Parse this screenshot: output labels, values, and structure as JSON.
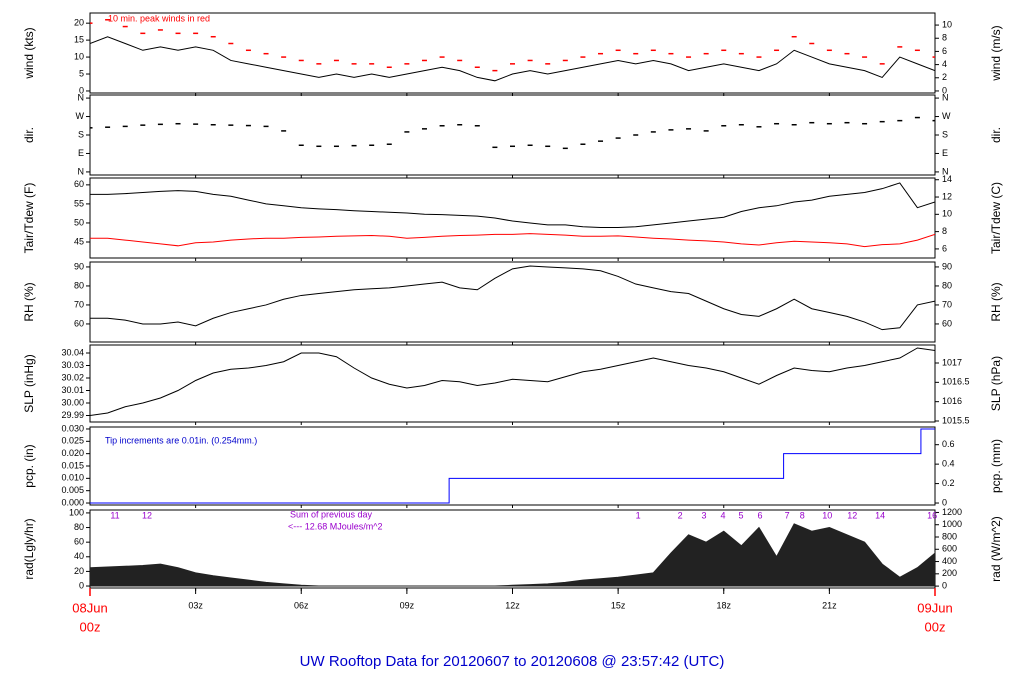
{
  "title": "UW Rooftop Data for 20120607  to  20120608 @ 23:57:42  (UTC)",
  "x_axis": {
    "xlim": [
      0,
      24
    ],
    "x": [
      0,
      0.5,
      1,
      1.5,
      2,
      2.5,
      3,
      3.5,
      4,
      4.5,
      5,
      5.5,
      6,
      6.5,
      7,
      7.5,
      8,
      8.5,
      9,
      9.5,
      10,
      10.5,
      11,
      11.5,
      12,
      12.5,
      13,
      13.5,
      14,
      14.5,
      15,
      15.5,
      16,
      16.5,
      17,
      17.5,
      18,
      18.5,
      19,
      19.5,
      20,
      20.5,
      21,
      21.5,
      22,
      22.5,
      23,
      23.5,
      24
    ],
    "xticks": [
      {
        "value": 3,
        "label": "03z"
      },
      {
        "value": 6,
        "label": "06z"
      },
      {
        "value": 9,
        "label": "09z"
      },
      {
        "value": 12,
        "label": "12z"
      },
      {
        "value": 15,
        "label": "15z"
      },
      {
        "value": 18,
        "label": "18z"
      },
      {
        "value": 21,
        "label": "21z"
      }
    ],
    "date_labels": [
      {
        "value": 0,
        "label": "08Jun",
        "sub": "00z"
      },
      {
        "value": 24,
        "label": "09Jun",
        "sub": "00z"
      }
    ],
    "date_color": "#ff0000"
  },
  "chart_data": [
    {
      "type": "line",
      "ylabel": "wind (kts)",
      "y2label": "wind (m/s)",
      "ylim": [
        -0.6,
        23
      ],
      "yticks": [
        0,
        5,
        10,
        15,
        20
      ],
      "y2lim": [
        -0.31,
        11.83
      ],
      "y2ticks": [
        0,
        2,
        4,
        6,
        8,
        10
      ],
      "annotations": [
        {
          "text": "10 min. peak winds in red",
          "color": "#ff0000"
        }
      ],
      "series": [
        {
          "name": "wind",
          "color": "#000000",
          "values": [
            14,
            16,
            14,
            12,
            13,
            12,
            13,
            12,
            9,
            8,
            7,
            6,
            5,
            4,
            5,
            4,
            5,
            4,
            5,
            6,
            7,
            6,
            4,
            3,
            5,
            6,
            5,
            6,
            7,
            8,
            9,
            8,
            9,
            8,
            6,
            7,
            8,
            7,
            6,
            8,
            12,
            10,
            8,
            7,
            6,
            4,
            10,
            8,
            6
          ]
        },
        {
          "name": "peak",
          "color": "#ff0000",
          "mark": "dash",
          "values": [
            20,
            21,
            19,
            17,
            18,
            17,
            17,
            16,
            14,
            12,
            11,
            10,
            9,
            8,
            9,
            8,
            8,
            7,
            8,
            9,
            10,
            9,
            7,
            6,
            8,
            9,
            8,
            9,
            10,
            11,
            12,
            11,
            12,
            11,
            10,
            11,
            12,
            11,
            10,
            12,
            16,
            14,
            12,
            11,
            10,
            8,
            13,
            12,
            10
          ]
        }
      ]
    },
    {
      "type": "scatter",
      "ylabel": "dir.",
      "y2label": "dir.",
      "ylim": [
        -15,
        375
      ],
      "yticks": [
        {
          "value": 0,
          "label": "N"
        },
        {
          "value": 90,
          "label": "E"
        },
        {
          "value": 180,
          "label": "S"
        },
        {
          "value": 270,
          "label": "W"
        },
        {
          "value": 360,
          "label": "N"
        }
      ],
      "y2lim": [
        -15,
        375
      ],
      "y2ticks": [
        {
          "value": 0,
          "label": "N"
        },
        {
          "value": 90,
          "label": "E"
        },
        {
          "value": 180,
          "label": "S"
        },
        {
          "value": 270,
          "label": "W"
        },
        {
          "value": 360,
          "label": "N"
        }
      ],
      "series": [
        {
          "name": "dir",
          "color": "#000000",
          "values": [
            215,
            218,
            222,
            228,
            232,
            235,
            233,
            230,
            228,
            226,
            222,
            200,
            130,
            125,
            125,
            128,
            130,
            135,
            195,
            210,
            225,
            230,
            225,
            120,
            125,
            130,
            125,
            115,
            135,
            150,
            165,
            180,
            195,
            205,
            210,
            200,
            225,
            230,
            220,
            235,
            230,
            240,
            235,
            240,
            235,
            245,
            250,
            265,
            250
          ]
        }
      ]
    },
    {
      "type": "line",
      "ylabel": "Tair/Tdew (F)",
      "y2label": "Tair/Tdew (C)",
      "ylim": [
        40.8,
        61.8
      ],
      "yticks": [
        45,
        50,
        55,
        60
      ],
      "y2lim": [
        4.95,
        14.2
      ],
      "y2ticks": [
        6,
        8,
        10,
        12,
        14
      ],
      "series": [
        {
          "name": "Tair",
          "color": "#000000",
          "values": [
            57.5,
            57.5,
            57.7,
            58,
            58.3,
            58.5,
            58.3,
            57.5,
            57,
            56,
            55,
            54.5,
            54,
            53.7,
            53.5,
            53.2,
            53,
            52.8,
            52.6,
            52.3,
            52.2,
            52,
            51.8,
            51.3,
            50.5,
            50,
            49.5,
            49.5,
            49,
            48.8,
            48.8,
            49,
            49.5,
            50,
            50.5,
            51,
            51.5,
            53,
            54,
            54.5,
            55.5,
            56,
            57,
            57.5,
            58,
            59,
            60.5,
            54,
            55.5
          ]
        },
        {
          "name": "Tdew",
          "color": "#ff0000",
          "values": [
            46,
            46,
            45.5,
            45,
            44.5,
            44,
            44.8,
            45,
            45.5,
            45.8,
            46,
            46,
            46.2,
            46.3,
            46.5,
            46.6,
            46.7,
            46.5,
            46,
            46.2,
            46.5,
            46.7,
            46.8,
            47,
            47,
            47.2,
            47,
            46.8,
            46.5,
            46.5,
            46.6,
            46.3,
            46,
            45.8,
            45.5,
            45.3,
            45,
            44.5,
            44.2,
            44.8,
            45.2,
            45,
            44.8,
            44.5,
            43.8,
            44.3,
            44.5,
            45.5,
            47
          ]
        }
      ]
    },
    {
      "type": "line",
      "ylabel": "RH (%)",
      "y2label": "RH (%)",
      "ylim": [
        50.5,
        92.6
      ],
      "yticks": [
        60,
        70,
        80,
        90
      ],
      "y2lim": [
        50.5,
        92.6
      ],
      "y2ticks": [
        60,
        70,
        80,
        90
      ],
      "series": [
        {
          "name": "RH",
          "color": "#000000",
          "values": [
            63,
            63,
            62,
            60,
            60,
            61,
            59,
            63,
            66,
            68,
            70,
            73,
            75,
            76,
            77,
            78,
            78.5,
            79,
            80,
            81,
            82,
            79,
            78,
            84,
            89,
            90.5,
            90,
            89.5,
            89,
            88,
            85,
            81,
            79,
            77,
            76,
            72,
            68,
            65,
            64,
            68,
            73,
            68,
            66,
            64,
            61,
            57,
            58,
            70,
            72
          ]
        }
      ]
    },
    {
      "type": "line",
      "ylabel": "SLP (inHg)",
      "y2label": "SLP (hPa)",
      "ylim": [
        29.9848,
        30.0464
      ],
      "yticks": [
        29.99,
        {
          "value": 30,
          "label": "30.00"
        },
        30.01,
        30.02,
        30.03,
        30.04
      ],
      "y2lim": [
        1015.474,
        1017.466
      ],
      "y2ticks": [
        1015.5,
        1016,
        1016.5,
        1017
      ],
      "series": [
        {
          "name": "SLP",
          "color": "#000000",
          "values": [
            29.99,
            29.992,
            29.997,
            30.0,
            30.004,
            30.01,
            30.018,
            30.024,
            30.027,
            30.028,
            30.03,
            30.033,
            30.04,
            30.04,
            30.037,
            30.028,
            30.02,
            30.015,
            30.012,
            30.014,
            30.018,
            30.017,
            30.014,
            30.016,
            30.019,
            30.018,
            30.017,
            30.021,
            30.025,
            30.027,
            30.03,
            30.033,
            30.036,
            30.033,
            30.03,
            30.028,
            30.025,
            30.02,
            30.015,
            30.022,
            30.028,
            30.026,
            30.025,
            30.028,
            30.03,
            30.033,
            30.036,
            30.044,
            30.042
          ]
        }
      ]
    },
    {
      "type": "line",
      "ylabel": "pcp. (in)",
      "y2label": "pcp. (mm)",
      "ylim": [
        -0.0008,
        0.0308
      ],
      "yticks": [
        {
          "value": 0,
          "label": "0.000"
        },
        {
          "value": 0.005,
          "label": "0.005"
        },
        {
          "value": 0.01,
          "label": "0.010"
        },
        {
          "value": 0.015,
          "label": "0.015"
        },
        {
          "value": 0.02,
          "label": "0.020"
        },
        {
          "value": 0.025,
          "label": "0.025"
        },
        {
          "value": 0.03,
          "label": "0.030"
        }
      ],
      "y2lim": [
        -0.0203,
        0.782
      ],
      "y2ticks": [
        0,
        0.2,
        0.4,
        0.6
      ],
      "annotations": [
        {
          "text": "Tip increments are 0.01in. (0.254mm.)",
          "color": "#0000cc"
        }
      ],
      "x": [
        0,
        10.2,
        10.2,
        19.7,
        19.7,
        23.6,
        23.6,
        24
      ],
      "series": [
        {
          "name": "pcp",
          "color": "#0000ff",
          "values": [
            0,
            0,
            0.01,
            0.01,
            0.02,
            0.02,
            0.03,
            0.03
          ]
        }
      ]
    },
    {
      "type": "area",
      "ylabel": "rad(Lgly/hr)",
      "y2label": "rad (W/m^2)",
      "ylim": [
        -2.7,
        104
      ],
      "yticks": [
        0,
        20,
        40,
        60,
        80,
        100
      ],
      "y2lim": [
        -31,
        1240
      ],
      "y2ticks": [
        0,
        200,
        400,
        600,
        800,
        1000,
        1200
      ],
      "annotations": [
        {
          "text": "Sum of previous day",
          "color": "#9900cc"
        },
        {
          "text": "<--- 12.68 MJoules/m^2",
          "color": "#9900cc"
        }
      ],
      "marker_color": "#9900cc",
      "markers": [
        {
          "x": 0.71,
          "label": "11"
        },
        {
          "x": 1.62,
          "label": "12"
        },
        {
          "x": 15.57,
          "label": "1"
        },
        {
          "x": 16.76,
          "label": "2"
        },
        {
          "x": 17.44,
          "label": "3"
        },
        {
          "x": 17.98,
          "label": "4"
        },
        {
          "x": 18.49,
          "label": "5"
        },
        {
          "x": 19.03,
          "label": "6"
        },
        {
          "x": 19.8,
          "label": "7"
        },
        {
          "x": 20.23,
          "label": "8"
        },
        {
          "x": 20.94,
          "label": "10"
        },
        {
          "x": 21.65,
          "label": "12"
        },
        {
          "x": 22.44,
          "label": "14"
        },
        {
          "x": 23.92,
          "label": "16"
        }
      ],
      "series": [
        {
          "name": "rad",
          "color": "#222222",
          "values": [
            25,
            26,
            27,
            28,
            30,
            25,
            18,
            14,
            11,
            8,
            5,
            3,
            1,
            0,
            0,
            0,
            0,
            0,
            0,
            0,
            0,
            0,
            0,
            0,
            1,
            2,
            3,
            5,
            8,
            10,
            12,
            15,
            18,
            45,
            70,
            60,
            75,
            55,
            80,
            40,
            85,
            75,
            80,
            70,
            60,
            30,
            12,
            25,
            45
          ]
        }
      ]
    }
  ]
}
